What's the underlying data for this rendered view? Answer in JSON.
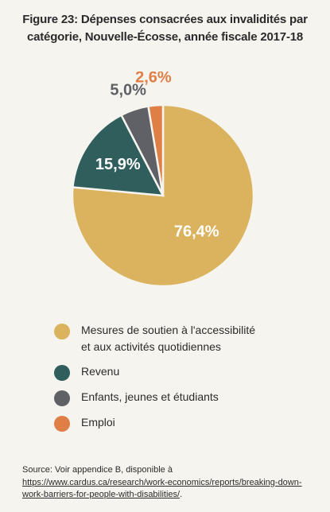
{
  "chart_data": {
    "type": "pie",
    "title": "Figure 23: Dépenses consacrées aux invalidités par catégorie, Nouvelle-Écosse, année fiscale 2017-18",
    "slices": [
      {
        "label": "Mesures de soutien à l'accessibilité et aux activités quotidiennes",
        "value": 76.4,
        "value_label": "76,4%",
        "color": "#dbb35e"
      },
      {
        "label": "Revenu",
        "value": 15.9,
        "value_label": "15,9%",
        "color": "#2f5e5c"
      },
      {
        "label": "Enfants, jeunes et étudiants",
        "value": 5.0,
        "value_label": "5,0%",
        "color": "#5f6166"
      },
      {
        "label": "Emploi",
        "value": 2.6,
        "value_label": "2,6%",
        "color": "#e07f45"
      }
    ],
    "legend_position": "bottom"
  },
  "legend": {
    "items": [
      {
        "line1": "Mesures de soutien à l'accessibilité",
        "line2": "et aux activités quotidiennes"
      },
      {
        "line1": "Revenu",
        "line2": ""
      },
      {
        "line1": "Enfants, jeunes et étudiants",
        "line2": ""
      },
      {
        "line1": "Emploi",
        "line2": ""
      }
    ]
  },
  "source": {
    "prefix": "Source: Voir appendice B, disponible à ",
    "link": "https://www.cardus.ca/research/work-economics/reports/breaking-down-work-barriers-for-people-with-disabilities/",
    "suffix": "."
  }
}
